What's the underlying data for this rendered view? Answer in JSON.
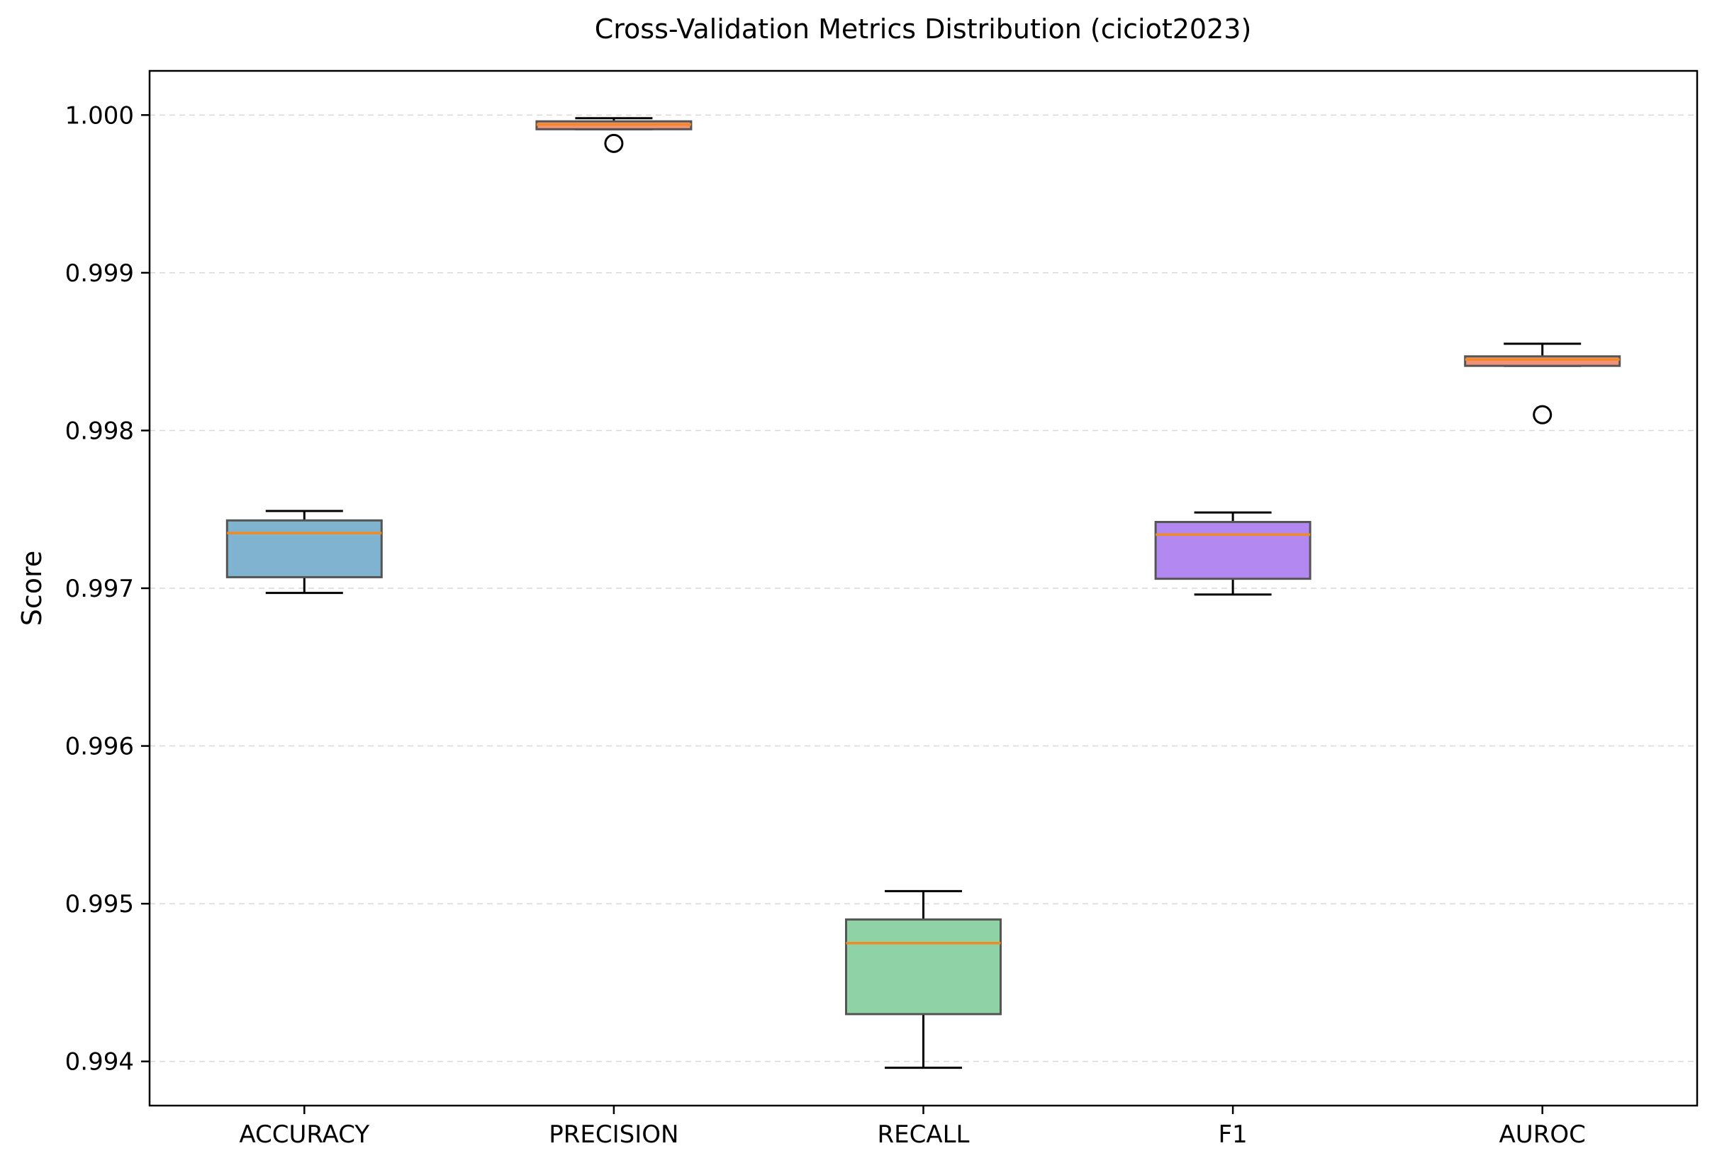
{
  "chart_data": {
    "type": "box",
    "title": "Cross-Validation Metrics Distribution (ciciot2023)",
    "xlabel": "",
    "ylabel": "Score",
    "ylim": [
      0.99372,
      1.00028
    ],
    "yticks": [
      0.994,
      0.995,
      0.996,
      0.997,
      0.998,
      0.999,
      1.0
    ],
    "ytick_labels": [
      "0.994",
      "0.995",
      "0.996",
      "0.997",
      "0.998",
      "0.999",
      "1.000"
    ],
    "grid": "horizontal dashed",
    "categories": [
      "ACCURACY",
      "PRECISION",
      "RECALL",
      "F1",
      "AUROC"
    ],
    "boxes": [
      {
        "name": "ACCURACY",
        "whisker_low": 0.99697,
        "q1": 0.99707,
        "median": 0.99735,
        "q3": 0.99743,
        "whisker_high": 0.99749,
        "outliers": [],
        "color": "#7fb3cf"
      },
      {
        "name": "PRECISION",
        "whisker_low": 0.99991,
        "q1": 0.99991,
        "median": 0.99994,
        "q3": 0.99996,
        "whisker_high": 0.99998,
        "outliers": [
          0.99982
        ],
        "color": "#f4917a"
      },
      {
        "name": "RECALL",
        "whisker_low": 0.99396,
        "q1": 0.9943,
        "median": 0.99475,
        "q3": 0.9949,
        "whisker_high": 0.99508,
        "outliers": [],
        "color": "#8fd2a6"
      },
      {
        "name": "F1",
        "whisker_low": 0.99696,
        "q1": 0.99706,
        "median": 0.99734,
        "q3": 0.99742,
        "whisker_high": 0.99748,
        "outliers": [],
        "color": "#b388f0"
      },
      {
        "name": "AUROC",
        "whisker_low": 0.99841,
        "q1": 0.99841,
        "median": 0.99845,
        "q3": 0.99847,
        "whisker_high": 0.99855,
        "outliers": [
          0.9981
        ],
        "color": "#f4917a"
      }
    ],
    "median_color": "#f08a24",
    "edge_color": "#555555"
  }
}
